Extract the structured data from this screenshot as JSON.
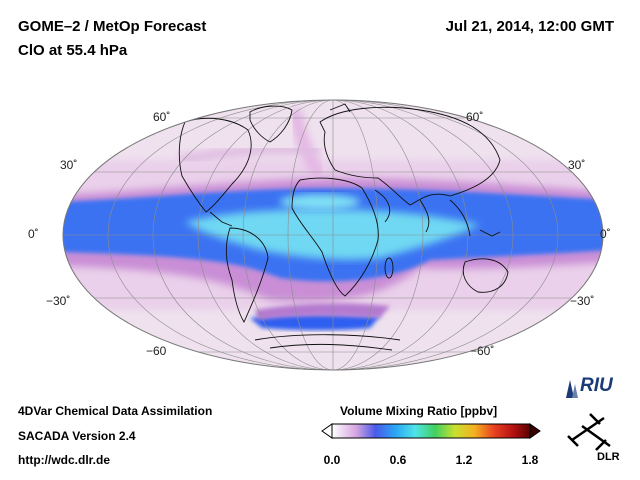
{
  "header": {
    "title": "GOME–2 / MetOp Forecast",
    "subtitle": "ClO at 55.4 hPa",
    "datetime": "Jul 21, 2014, 12:00 GMT"
  },
  "map": {
    "projection": "Mollweide",
    "lat_labels_left": [
      "60˚",
      "30˚",
      "0˚",
      "−30˚",
      "−60"
    ],
    "lat_labels_right": [
      "60˚",
      "30˚",
      "0˚",
      "−30˚",
      "−60˚"
    ],
    "colors": {
      "background": "#e9e9e9",
      "low": "#f4e4f0",
      "mid": "#c77fd2",
      "high": "#2f66f0",
      "peak": "#6fe0f0"
    }
  },
  "footer": {
    "line1": "4DVar Chemical Data Assimilation",
    "line2": "SACADA Version 2.4",
    "line3": "http://wdc.dlr.de"
  },
  "colorbar": {
    "title": "Volume Mixing Ratio [ppbv]",
    "ticks": [
      "0.0",
      "0.6",
      "1.2",
      "1.8"
    ]
  },
  "logos": {
    "riu": "RIU",
    "dlr": "DLR"
  }
}
